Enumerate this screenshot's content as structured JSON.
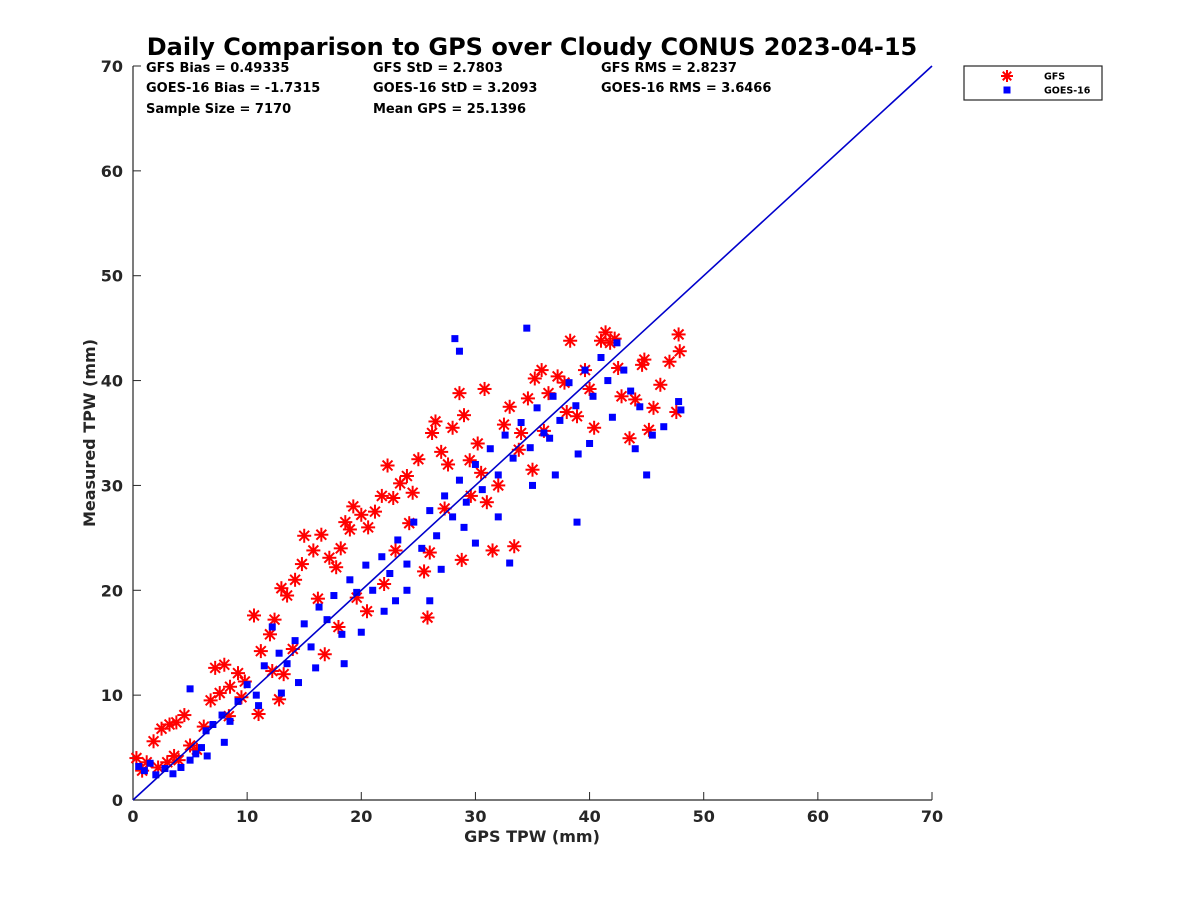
{
  "chart_data": {
    "type": "scatter",
    "title": "Daily Comparison to GPS over Cloudy CONUS 2023-04-15",
    "xlabel": "GPS TPW (mm)",
    "ylabel": "Measured TPW (mm)",
    "xlim": [
      0,
      70
    ],
    "ylim": [
      0,
      70
    ],
    "xticks": [
      "0",
      "10",
      "20",
      "30",
      "40",
      "50",
      "60",
      "70"
    ],
    "yticks": [
      "0",
      "10",
      "20",
      "30",
      "40",
      "50",
      "60",
      "70"
    ],
    "grid": false,
    "legend_position": "outside-top-right",
    "one_to_one_line": {
      "x": [
        0,
        70
      ],
      "y": [
        0,
        70
      ],
      "color": "#0000cc"
    },
    "stats": [
      {
        "id": "gfs-bias",
        "text": "GFS Bias = 0.49335"
      },
      {
        "id": "gfs-std",
        "text": "GFS StD = 2.7803"
      },
      {
        "id": "gfs-rms",
        "text": "GFS RMS = 2.8237"
      },
      {
        "id": "goes-bias",
        "text": "GOES-16 Bias = -1.7315"
      },
      {
        "id": "goes-std",
        "text": "GOES-16 StD = 3.2093"
      },
      {
        "id": "goes-rms",
        "text": "GOES-16 RMS = 3.6466"
      },
      {
        "id": "sample-size",
        "text": "Sample Size = 7170"
      },
      {
        "id": "mean-gps",
        "text": "Mean GPS = 25.1396"
      }
    ],
    "series": [
      {
        "name": "GFS",
        "marker": "asterisk",
        "color": "#ff0000",
        "points": [
          [
            0.3,
            4.0
          ],
          [
            1.2,
            3.6
          ],
          [
            0.8,
            2.8
          ],
          [
            1.8,
            5.6
          ],
          [
            2.5,
            6.8
          ],
          [
            3.2,
            7.2
          ],
          [
            3.8,
            7.4
          ],
          [
            4.5,
            8.1
          ],
          [
            2.2,
            3.1
          ],
          [
            3.0,
            3.6
          ],
          [
            4.0,
            3.8
          ],
          [
            5.0,
            5.2
          ],
          [
            6.2,
            7.0
          ],
          [
            6.8,
            9.5
          ],
          [
            7.2,
            12.6
          ],
          [
            8.0,
            12.9
          ],
          [
            8.5,
            10.8
          ],
          [
            7.6,
            10.2
          ],
          [
            9.2,
            12.1
          ],
          [
            9.8,
            11.3
          ],
          [
            10.6,
            17.6
          ],
          [
            11.2,
            14.2
          ],
          [
            12.0,
            15.8
          ],
          [
            12.4,
            17.2
          ],
          [
            12.8,
            9.6
          ],
          [
            13.5,
            19.5
          ],
          [
            13.0,
            20.2
          ],
          [
            14.2,
            21.0
          ],
          [
            14.8,
            22.5
          ],
          [
            15.0,
            25.2
          ],
          [
            15.8,
            23.8
          ],
          [
            16.5,
            25.3
          ],
          [
            17.2,
            23.1
          ],
          [
            17.8,
            22.2
          ],
          [
            18.2,
            24.0
          ],
          [
            18.6,
            26.5
          ],
          [
            19.0,
            25.8
          ],
          [
            19.3,
            28.0
          ],
          [
            20.0,
            27.2
          ],
          [
            20.6,
            26.0
          ],
          [
            21.2,
            27.5
          ],
          [
            21.8,
            29.0
          ],
          [
            22.3,
            31.9
          ],
          [
            22.8,
            28.8
          ],
          [
            23.4,
            30.2
          ],
          [
            24.0,
            30.9
          ],
          [
            24.5,
            29.3
          ],
          [
            25.0,
            32.5
          ],
          [
            25.8,
            17.4
          ],
          [
            26.2,
            35.0
          ],
          [
            26.5,
            36.1
          ],
          [
            27.0,
            33.2
          ],
          [
            27.6,
            32.0
          ],
          [
            28.0,
            35.5
          ],
          [
            28.6,
            38.8
          ],
          [
            29.0,
            36.7
          ],
          [
            29.5,
            32.4
          ],
          [
            30.2,
            34.0
          ],
          [
            30.8,
            39.2
          ],
          [
            31.5,
            23.8
          ],
          [
            32.0,
            30.0
          ],
          [
            32.5,
            35.8
          ],
          [
            33.0,
            37.5
          ],
          [
            33.4,
            24.2
          ],
          [
            34.0,
            35.0
          ],
          [
            34.6,
            38.3
          ],
          [
            35.2,
            40.2
          ],
          [
            35.8,
            41.0
          ],
          [
            36.4,
            38.8
          ],
          [
            37.2,
            40.4
          ],
          [
            37.8,
            39.8
          ],
          [
            38.3,
            43.8
          ],
          [
            38.9,
            36.6
          ],
          [
            39.6,
            41.0
          ],
          [
            40.4,
            35.5
          ],
          [
            41.0,
            43.8
          ],
          [
            41.4,
            44.6
          ],
          [
            41.8,
            43.6
          ],
          [
            42.2,
            44.0
          ],
          [
            42.8,
            38.5
          ],
          [
            43.5,
            34.5
          ],
          [
            44.0,
            38.2
          ],
          [
            44.6,
            41.5
          ],
          [
            45.2,
            35.3
          ],
          [
            45.6,
            37.4
          ],
          [
            46.2,
            39.6
          ],
          [
            47.0,
            41.8
          ],
          [
            47.8,
            44.4
          ],
          [
            47.9,
            42.8
          ],
          [
            47.6,
            37.0
          ],
          [
            26.0,
            23.6
          ],
          [
            28.8,
            22.9
          ],
          [
            16.2,
            19.2
          ],
          [
            14.0,
            14.4
          ],
          [
            12.2,
            12.3
          ],
          [
            11.0,
            8.2
          ],
          [
            9.5,
            9.8
          ],
          [
            20.5,
            18.0
          ],
          [
            24.2,
            26.4
          ],
          [
            31.0,
            28.4
          ],
          [
            35.0,
            31.5
          ],
          [
            22.0,
            20.6
          ],
          [
            18.0,
            16.5
          ],
          [
            27.3,
            27.8
          ],
          [
            33.8,
            33.4
          ],
          [
            40.0,
            39.2
          ],
          [
            13.2,
            12.0
          ],
          [
            8.4,
            8.0
          ],
          [
            5.6,
            4.8
          ],
          [
            3.6,
            4.2
          ],
          [
            16.8,
            13.9
          ],
          [
            19.6,
            19.3
          ],
          [
            23.0,
            23.8
          ],
          [
            29.6,
            29.0
          ],
          [
            36.0,
            35.2
          ],
          [
            25.5,
            21.8
          ],
          [
            30.5,
            31.2
          ],
          [
            38.0,
            37.0
          ],
          [
            42.5,
            41.2
          ],
          [
            44.8,
            42.0
          ]
        ]
      },
      {
        "name": "GOES-16",
        "marker": "square",
        "color": "#0000ff",
        "points": [
          [
            0.5,
            3.2
          ],
          [
            1.0,
            2.8
          ],
          [
            1.5,
            3.5
          ],
          [
            2.0,
            2.4
          ],
          [
            2.8,
            3.0
          ],
          [
            3.5,
            2.5
          ],
          [
            4.2,
            3.1
          ],
          [
            5.0,
            3.8
          ],
          [
            5.5,
            4.4
          ],
          [
            6.0,
            5.0
          ],
          [
            5.0,
            10.6
          ],
          [
            6.4,
            6.6
          ],
          [
            7.0,
            7.2
          ],
          [
            7.8,
            8.1
          ],
          [
            8.5,
            7.5
          ],
          [
            9.2,
            9.4
          ],
          [
            10.0,
            11.0
          ],
          [
            10.8,
            10.0
          ],
          [
            11.5,
            12.8
          ],
          [
            12.2,
            16.5
          ],
          [
            12.8,
            14.0
          ],
          [
            13.5,
            13.0
          ],
          [
            14.2,
            15.2
          ],
          [
            15.0,
            16.8
          ],
          [
            15.6,
            14.6
          ],
          [
            16.3,
            18.4
          ],
          [
            17.0,
            17.2
          ],
          [
            17.6,
            19.5
          ],
          [
            18.3,
            15.8
          ],
          [
            19.0,
            21.0
          ],
          [
            19.6,
            19.8
          ],
          [
            20.4,
            22.4
          ],
          [
            21.0,
            20.0
          ],
          [
            21.8,
            23.2
          ],
          [
            22.5,
            21.6
          ],
          [
            23.2,
            24.8
          ],
          [
            24.0,
            22.5
          ],
          [
            24.6,
            26.5
          ],
          [
            25.3,
            24.0
          ],
          [
            26.0,
            27.6
          ],
          [
            26.6,
            25.2
          ],
          [
            27.3,
            29.0
          ],
          [
            28.0,
            27.0
          ],
          [
            28.6,
            30.5
          ],
          [
            29.2,
            28.4
          ],
          [
            30.0,
            32.0
          ],
          [
            30.6,
            29.6
          ],
          [
            31.3,
            33.5
          ],
          [
            32.0,
            31.0
          ],
          [
            32.6,
            34.8
          ],
          [
            33.3,
            32.6
          ],
          [
            34.0,
            36.0
          ],
          [
            34.8,
            33.6
          ],
          [
            35.4,
            37.4
          ],
          [
            36.0,
            35.0
          ],
          [
            36.8,
            38.5
          ],
          [
            37.4,
            36.2
          ],
          [
            38.2,
            39.8
          ],
          [
            38.8,
            37.6
          ],
          [
            39.6,
            41.0
          ],
          [
            40.3,
            38.5
          ],
          [
            41.0,
            42.2
          ],
          [
            41.6,
            40.0
          ],
          [
            42.4,
            43.6
          ],
          [
            43.0,
            41.0
          ],
          [
            43.6,
            39.0
          ],
          [
            44.4,
            37.5
          ],
          [
            45.0,
            31.0
          ],
          [
            48.0,
            37.2
          ],
          [
            47.8,
            38.0
          ],
          [
            28.2,
            44.0
          ],
          [
            28.6,
            42.8
          ],
          [
            34.5,
            45.0
          ],
          [
            38.9,
            26.5
          ],
          [
            36.5,
            34.5
          ],
          [
            33.0,
            22.6
          ],
          [
            26.0,
            19.0
          ],
          [
            22.0,
            18.0
          ],
          [
            18.5,
            13.0
          ],
          [
            14.5,
            11.2
          ],
          [
            11.0,
            9.0
          ],
          [
            8.0,
            5.5
          ],
          [
            6.5,
            4.2
          ],
          [
            24.0,
            20.0
          ],
          [
            29.0,
            26.0
          ],
          [
            35.0,
            30.0
          ],
          [
            40.0,
            34.0
          ],
          [
            42.0,
            36.5
          ],
          [
            44.0,
            33.5
          ],
          [
            45.5,
            34.8
          ],
          [
            46.5,
            35.6
          ],
          [
            20.0,
            16.0
          ],
          [
            16.0,
            12.6
          ],
          [
            13.0,
            10.2
          ],
          [
            30.0,
            24.5
          ],
          [
            32.0,
            27.0
          ],
          [
            37.0,
            31.0
          ],
          [
            39.0,
            33.0
          ],
          [
            27.0,
            22.0
          ],
          [
            23.0,
            19.0
          ]
        ]
      }
    ]
  }
}
